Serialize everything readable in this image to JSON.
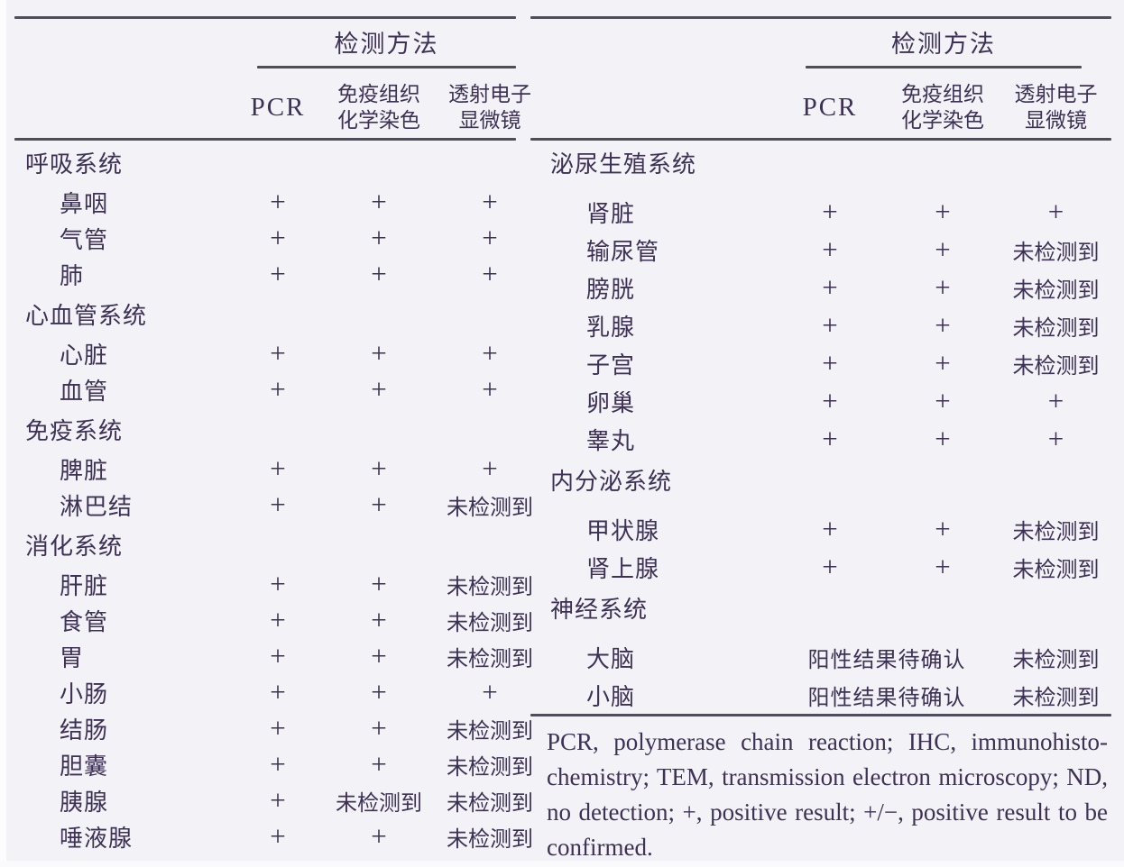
{
  "colors": {
    "ink": "#3d3156",
    "rule": "#4f4d5c",
    "background": "#f3f2f6"
  },
  "table": {
    "methods_group_label": "检测方法",
    "columns": [
      "PCR",
      "免疫组织\n化学染色",
      "透射电子\n显微镜"
    ],
    "left_panel": {
      "sections": [
        {
          "name": "呼吸系统",
          "rows": [
            {
              "label": "鼻咽",
              "pcr": "+",
              "ihc": "+",
              "tem": "+"
            },
            {
              "label": "气管",
              "pcr": "+",
              "ihc": "+",
              "tem": "+"
            },
            {
              "label": "肺",
              "pcr": "+",
              "ihc": "+",
              "tem": "+"
            }
          ]
        },
        {
          "name": "心血管系统",
          "rows": [
            {
              "label": "心脏",
              "pcr": "+",
              "ihc": "+",
              "tem": "+"
            },
            {
              "label": "血管",
              "pcr": "+",
              "ihc": "+",
              "tem": "+"
            }
          ]
        },
        {
          "name": "免疫系统",
          "rows": [
            {
              "label": "脾脏",
              "pcr": "+",
              "ihc": "+",
              "tem": "+"
            },
            {
              "label": "淋巴结",
              "pcr": "+",
              "ihc": "+",
              "tem": "未检测到"
            }
          ]
        },
        {
          "name": "消化系统",
          "rows": [
            {
              "label": "肝脏",
              "pcr": "+",
              "ihc": "+",
              "tem": "未检测到"
            },
            {
              "label": "食管",
              "pcr": "+",
              "ihc": "+",
              "tem": "未检测到"
            },
            {
              "label": "胃",
              "pcr": "+",
              "ihc": "+",
              "tem": "未检测到"
            },
            {
              "label": "小肠",
              "pcr": "+",
              "ihc": "+",
              "tem": "+"
            },
            {
              "label": "结肠",
              "pcr": "+",
              "ihc": "+",
              "tem": "未检测到"
            },
            {
              "label": "胆囊",
              "pcr": "+",
              "ihc": "+",
              "tem": "未检测到"
            },
            {
              "label": "胰腺",
              "pcr": "+",
              "ihc": "未检测到",
              "tem": "未检测到"
            },
            {
              "label": "唾液腺",
              "pcr": "+",
              "ihc": "+",
              "tem": "未检测到"
            }
          ]
        }
      ]
    },
    "right_panel": {
      "sections": [
        {
          "name": "泌尿生殖系统",
          "rows": [
            {
              "label": "肾脏",
              "pcr": "+",
              "ihc": "+",
              "tem": "+"
            },
            {
              "label": "输尿管",
              "pcr": "+",
              "ihc": "+",
              "tem": "未检测到"
            },
            {
              "label": "膀胱",
              "pcr": "+",
              "ihc": "+",
              "tem": "未检测到"
            },
            {
              "label": "乳腺",
              "pcr": "+",
              "ihc": "+",
              "tem": "未检测到"
            },
            {
              "label": "子宫",
              "pcr": "+",
              "ihc": "+",
              "tem": "未检测到"
            },
            {
              "label": "卵巢",
              "pcr": "+",
              "ihc": "+",
              "tem": "+"
            },
            {
              "label": "睾丸",
              "pcr": "+",
              "ihc": "+",
              "tem": "+"
            }
          ]
        },
        {
          "name": "内分泌系统",
          "rows": [
            {
              "label": "甲状腺",
              "pcr": "+",
              "ihc": "+",
              "tem": "未检测到"
            },
            {
              "label": "肾上腺",
              "pcr": "+",
              "ihc": "+",
              "tem": "未检测到"
            }
          ]
        },
        {
          "name": "神经系统",
          "rows": [
            {
              "label": "大脑",
              "pcr_ihc": "阳性结果待确认",
              "tem": "未检测到"
            },
            {
              "label": "小脑",
              "pcr_ihc": "阳性结果待确认",
              "tem": "未检测到"
            }
          ]
        }
      ]
    }
  },
  "footnote": {
    "lines": [
      "PCR, polymerase chain reaction; IHC, immunohisto-",
      "chemistry; TEM, transmission electron microscopy; ND,",
      "no detection; +, positive result; +/−, positive result to be",
      "confirmed."
    ]
  }
}
